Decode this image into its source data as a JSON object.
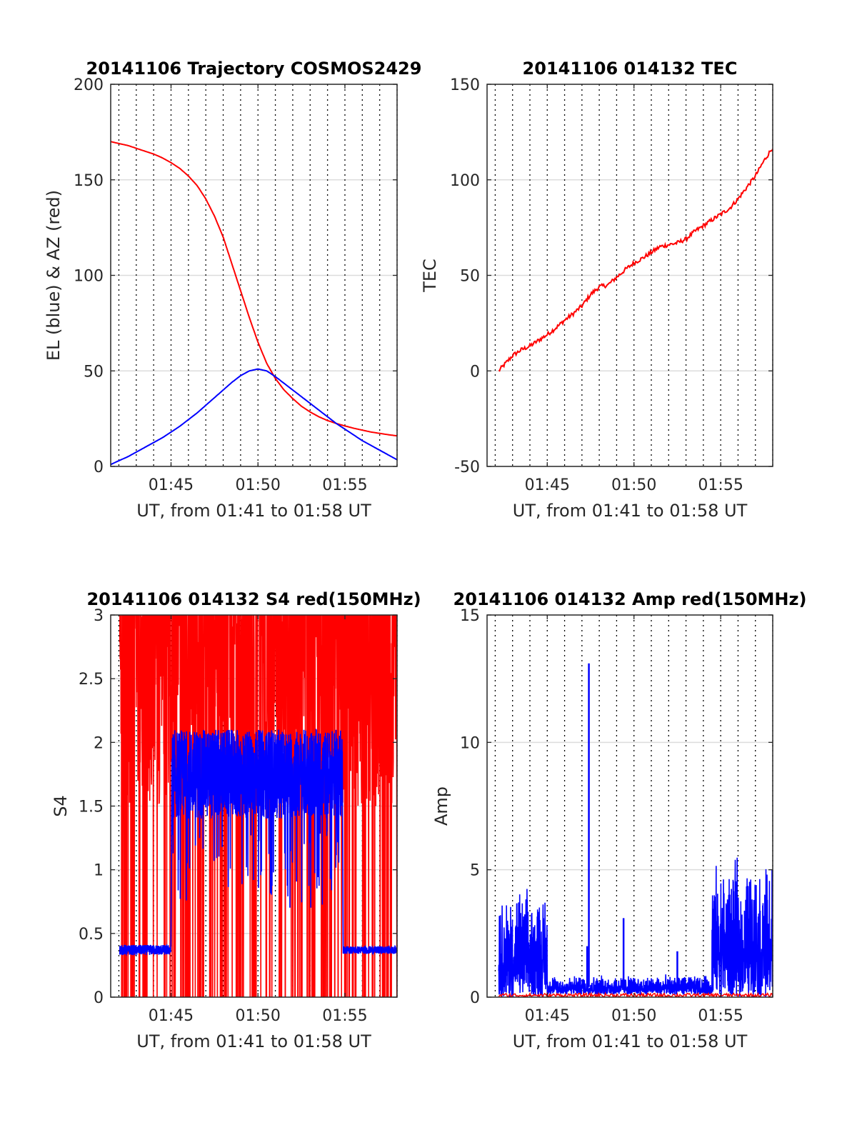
{
  "chart_data": [
    {
      "id": "traj",
      "type": "line",
      "title": "20141106 Trajectory COSMOS2429",
      "xlabel": "UT, from 01:41 to 01:58 UT",
      "ylabel": "EL (blue) & AZ (red)",
      "xlim": [
        101.53,
        118.0
      ],
      "ylim": [
        0,
        200
      ],
      "yticks": [
        0,
        50,
        100,
        150,
        200
      ],
      "ytick_labels": [
        "0",
        "50",
        "100",
        "150",
        "200"
      ],
      "xticks": [
        105,
        110,
        115
      ],
      "xtick_labels": [
        "01:45",
        "01:50",
        "01:55"
      ],
      "series": [
        {
          "name": "AZ",
          "color": "#ff0000",
          "x": [
            101.53,
            102,
            102.5,
            103,
            103.5,
            104,
            104.5,
            105,
            105.5,
            106,
            106.5,
            107,
            107.5,
            108,
            108.5,
            109,
            109.5,
            110,
            110.5,
            111,
            111.5,
            112,
            112.5,
            113,
            113.5,
            114,
            114.5,
            115,
            115.5,
            116,
            116.5,
            117,
            117.5,
            118
          ],
          "y": [
            170,
            169,
            168,
            166.5,
            165,
            163.5,
            161.5,
            159,
            156,
            152,
            147,
            140,
            131,
            120,
            106,
            92,
            78,
            65,
            54,
            46,
            40,
            35.5,
            31.5,
            28.5,
            26,
            24,
            22.5,
            21.2,
            20,
            19,
            18,
            17.3,
            16.6,
            16
          ]
        },
        {
          "name": "EL",
          "color": "#0000ff",
          "x": [
            101.53,
            102,
            102.5,
            103,
            103.5,
            104,
            104.5,
            105,
            105.5,
            106,
            106.5,
            107,
            107.5,
            108,
            108.5,
            109,
            109.5,
            110,
            110.5,
            111,
            111.5,
            112,
            112.5,
            113,
            113.5,
            114,
            114.5,
            115,
            115.5,
            116,
            116.5,
            117,
            117.5,
            118
          ],
          "y": [
            1,
            3,
            5,
            7.5,
            10,
            12.5,
            15,
            18,
            21,
            24.5,
            28,
            32,
            36,
            40,
            44,
            47.5,
            50,
            51,
            50,
            47,
            43.5,
            40,
            36.5,
            33,
            29.5,
            26,
            22.5,
            19.5,
            16.5,
            13.5,
            11,
            8.5,
            6,
            3.5
          ]
        }
      ]
    },
    {
      "id": "tec",
      "type": "line",
      "title": "20141106 014132 TEC",
      "xlabel": "UT, from 01:41 to 01:58 UT",
      "ylabel": "TEC",
      "xlim": [
        101.53,
        118.0
      ],
      "ylim": [
        -50,
        150
      ],
      "yticks": [
        -50,
        0,
        50,
        100,
        150
      ],
      "ytick_labels": [
        "-50",
        "0",
        "50",
        "100",
        "150"
      ],
      "xticks": [
        105,
        110,
        115
      ],
      "xtick_labels": [
        "01:45",
        "01:50",
        "01:55"
      ],
      "series": [
        {
          "name": "TEC",
          "color": "#ff0000",
          "x": [
            102.2,
            102.5,
            103,
            103.5,
            104,
            104.5,
            105,
            105.5,
            106,
            106.5,
            107,
            107.5,
            108,
            108.5,
            109,
            109.5,
            110,
            110.5,
            111,
            111.5,
            112,
            112.5,
            113,
            113.5,
            114,
            114.5,
            115,
            115.5,
            116,
            116.5,
            117,
            117.5,
            118
          ],
          "y": [
            0,
            3,
            8,
            11,
            13,
            16,
            19,
            22.5,
            26.5,
            30,
            34,
            40,
            44,
            45,
            49,
            53,
            56.5,
            59,
            62,
            65,
            66,
            67,
            69,
            73,
            76,
            79,
            82,
            85,
            90,
            96,
            102,
            110,
            117
          ]
        }
      ]
    },
    {
      "id": "s4",
      "type": "line",
      "title": "20141106 014132 S4 red(150MHz)",
      "xlabel": "UT, from 01:41 to 01:58 UT",
      "ylabel": "S4",
      "xlim": [
        101.53,
        118.0
      ],
      "ylim": [
        0,
        3
      ],
      "yticks": [
        0,
        0.5,
        1,
        1.5,
        2,
        2.5,
        3
      ],
      "ytick_labels": [
        "0",
        "0.5",
        "1",
        "1.5",
        "2",
        "2.5",
        "3"
      ],
      "xticks": [
        105,
        110,
        115
      ],
      "xtick_labels": [
        "01:45",
        "01:50",
        "01:55"
      ],
      "series": [
        {
          "name": "S4 red",
          "color": "#ff0000",
          "x_start": 102.05,
          "x_end": 118.0,
          "level": "noisy 0 to 3 (clipped), frequent drops to 0"
        },
        {
          "name": "S4 blue",
          "color": "#0000ff",
          "segments": [
            {
              "x": [
                102.05,
                105.0
              ],
              "mean": 0.37,
              "noise": 0.04
            },
            {
              "x": [
                105.05,
                114.85
              ],
              "mean": 1.75,
              "noise": 0.35
            },
            {
              "x": [
                114.9,
                118.0
              ],
              "mean": 0.37,
              "noise": 0.03
            }
          ]
        }
      ]
    },
    {
      "id": "amp",
      "type": "line",
      "title": "20141106 014132 Amp red(150MHz)",
      "xlabel": "UT, from 01:41 to 01:58 UT",
      "ylabel": "Amp",
      "xlim": [
        101.53,
        118.0
      ],
      "ylim": [
        0,
        15
      ],
      "yticks": [
        0,
        5,
        10,
        15
      ],
      "ytick_labels": [
        "0",
        "5",
        "10",
        "15"
      ],
      "xticks": [
        105,
        110,
        115
      ],
      "xtick_labels": [
        "01:45",
        "01:50",
        "01:55"
      ],
      "series": [
        {
          "name": "Amp blue",
          "color": "#0000ff",
          "segments": [
            {
              "x": [
                102.2,
                105.0
              ],
              "max": 4.4,
              "min": 0
            },
            {
              "x": [
                105.0,
                114.5
              ],
              "max": 0.9,
              "min": 0.1
            },
            {
              "x": [
                114.5,
                118.0
              ],
              "max": 5.6,
              "min": 0
            }
          ],
          "spikes": [
            {
              "x": 107.4,
              "y": 13.1
            },
            {
              "x": 109.4,
              "y": 3.1
            },
            {
              "x": 107.3,
              "y": 2.0
            },
            {
              "x": 112.5,
              "y": 1.8
            }
          ]
        },
        {
          "name": "Amp red",
          "color": "#ff0000",
          "level": "near 0"
        }
      ]
    }
  ]
}
